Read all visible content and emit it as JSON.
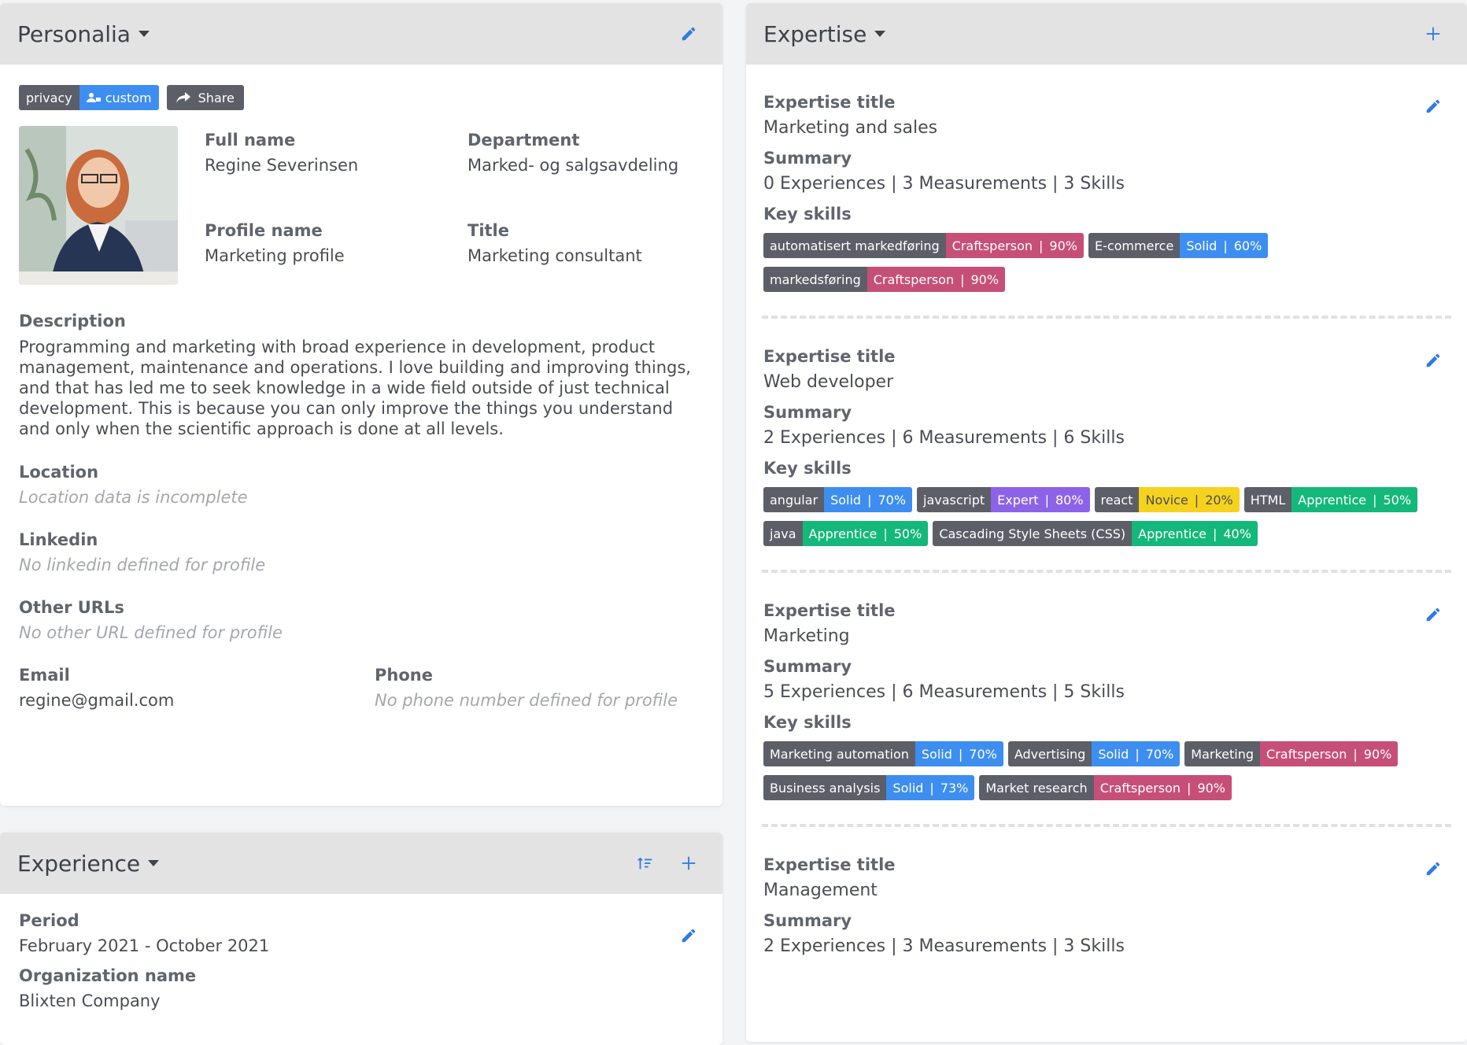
{
  "personalia": {
    "title": "Personalia",
    "privacy_label": "privacy",
    "privacy_value": "custom",
    "share_label": "Share",
    "full_name_label": "Full name",
    "full_name": "Regine Severinsen",
    "department_label": "Department",
    "department": "Marked- og salgsavdeling",
    "profile_name_label": "Profile name",
    "profile_name": "Marketing profile",
    "title_label": "Title",
    "job_title": "Marketing consultant",
    "description_label": "Description",
    "description": "Programming and marketing with broad experience in development, product management, maintenance and operations. I love building and improving things, and that has led me to seek knowledge in a wide field outside of just technical development. This is because you can only improve the things you understand and only when the scientific approach is done at all levels.",
    "location_label": "Location",
    "location": "Location data is incomplete",
    "linkedin_label": "Linkedin",
    "linkedin": "No linkedin defined for profile",
    "other_urls_label": "Other URLs",
    "other_urls": "No other URL defined for profile",
    "email_label": "Email",
    "email": "regine@gmail.com",
    "phone_label": "Phone",
    "phone": "No phone number defined for profile"
  },
  "experience": {
    "title": "Experience",
    "period_label": "Period",
    "period": "February 2021 - October 2021",
    "org_label": "Organization name",
    "org": "Blixten Company"
  },
  "expertise": {
    "title": "Expertise",
    "title_label": "Expertise title",
    "summary_label": "Summary",
    "key_skills_label": "Key skills",
    "items": [
      {
        "title": "Marketing and sales",
        "summary": "0 Experiences | 3 Measurements | 3 Skills",
        "skills": [
          {
            "name": "automatisert markedføring",
            "level": "Craftsperson",
            "pct": "90%",
            "kind": "craft"
          },
          {
            "name": "E-commerce",
            "level": "Solid",
            "pct": "60%",
            "kind": "solid"
          },
          {
            "name": "markedsføring",
            "level": "Craftsperson",
            "pct": "90%",
            "kind": "craft"
          }
        ]
      },
      {
        "title": "Web developer",
        "summary": "2 Experiences | 6 Measurements | 6 Skills",
        "skills": [
          {
            "name": "angular",
            "level": "Solid",
            "pct": "70%",
            "kind": "solid"
          },
          {
            "name": "javascript",
            "level": "Expert",
            "pct": "80%",
            "kind": "expert"
          },
          {
            "name": "react",
            "level": "Novice",
            "pct": "20%",
            "kind": "novice"
          },
          {
            "name": "HTML",
            "level": "Apprentice",
            "pct": "50%",
            "kind": "appr"
          },
          {
            "name": "java",
            "level": "Apprentice",
            "pct": "50%",
            "kind": "appr"
          },
          {
            "name": "Cascading Style Sheets (CSS)",
            "level": "Apprentice",
            "pct": "40%",
            "kind": "appr"
          }
        ]
      },
      {
        "title": "Marketing",
        "summary": "5 Experiences | 6 Measurements | 5 Skills",
        "skills": [
          {
            "name": "Marketing automation",
            "level": "Solid",
            "pct": "70%",
            "kind": "solid"
          },
          {
            "name": "Advertising",
            "level": "Solid",
            "pct": "70%",
            "kind": "solid"
          },
          {
            "name": "Marketing",
            "level": "Craftsperson",
            "pct": "90%",
            "kind": "craft"
          },
          {
            "name": "Business analysis",
            "level": "Solid",
            "pct": "73%",
            "kind": "solid"
          },
          {
            "name": "Market research",
            "level": "Craftsperson",
            "pct": "90%",
            "kind": "craft"
          }
        ]
      },
      {
        "title": "Management",
        "summary": "2 Experiences | 3 Measurements | 3 Skills",
        "skills": []
      }
    ]
  },
  "colors": {
    "accent": "#2e7be6",
    "craftsperson": "#c64f78",
    "solid": "#3d8ef0",
    "expert": "#8c63e8",
    "novice": "#f5d21e",
    "apprentice": "#14b87a"
  }
}
